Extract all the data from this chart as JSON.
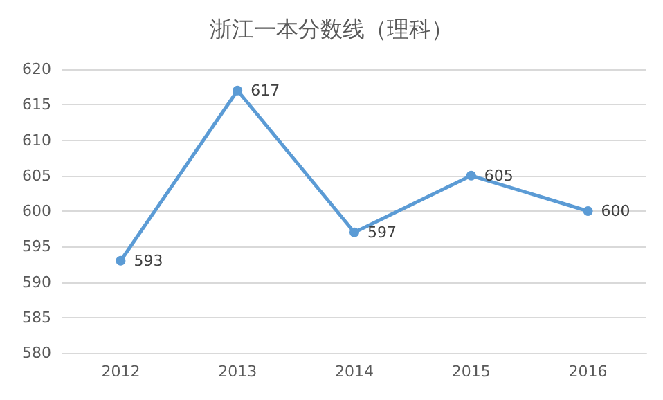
{
  "chart_data": {
    "type": "line",
    "title": "浙江一本分数线（理科）",
    "categories": [
      "2012",
      "2013",
      "2014",
      "2015",
      "2016"
    ],
    "series": [
      {
        "color": "#5b9bd5",
        "values": [
          593,
          617,
          597,
          605,
          600
        ]
      }
    ],
    "ylim": [
      580,
      620
    ],
    "yticks": [
      580,
      585,
      590,
      595,
      600,
      605,
      610,
      615,
      620
    ],
    "grid": "y",
    "marker": "circle",
    "line_style": "solid",
    "data_labels": true
  }
}
